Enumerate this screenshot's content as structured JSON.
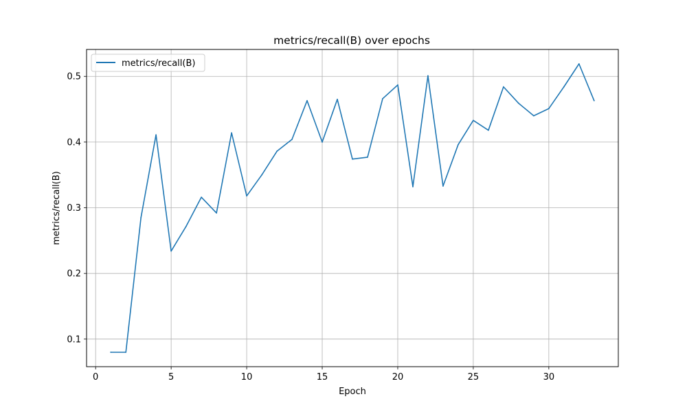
{
  "chart_data": {
    "type": "line",
    "title": "metrics/recall(B) over epochs",
    "xlabel": "Epoch",
    "ylabel": "metrics/recall(B)",
    "xlim": [
      -0.6,
      34.6
    ],
    "ylim": [
      0.058,
      0.541
    ],
    "xticks": [
      0,
      5,
      10,
      15,
      20,
      25,
      30
    ],
    "yticks": [
      0.1,
      0.2,
      0.3,
      0.4,
      0.5
    ],
    "grid": true,
    "legend_position": "top-left",
    "series": [
      {
        "name": "metrics/recall(B)",
        "color": "#1f77b4",
        "x": [
          1,
          2,
          3,
          4,
          5,
          6,
          7,
          8,
          9,
          10,
          11,
          12,
          13,
          14,
          15,
          16,
          17,
          18,
          19,
          20,
          21,
          22,
          23,
          24,
          25,
          26,
          27,
          28,
          29,
          30,
          31,
          32,
          33
        ],
        "y": [
          0.08,
          0.08,
          0.285,
          0.411,
          0.234,
          0.272,
          0.316,
          0.292,
          0.414,
          0.318,
          0.35,
          0.386,
          0.404,
          0.463,
          0.4,
          0.465,
          0.374,
          0.377,
          0.466,
          0.487,
          0.332,
          0.501,
          0.333,
          0.396,
          0.433,
          0.418,
          0.484,
          0.459,
          0.44,
          0.451,
          0.484,
          0.519,
          0.463
        ]
      }
    ]
  }
}
